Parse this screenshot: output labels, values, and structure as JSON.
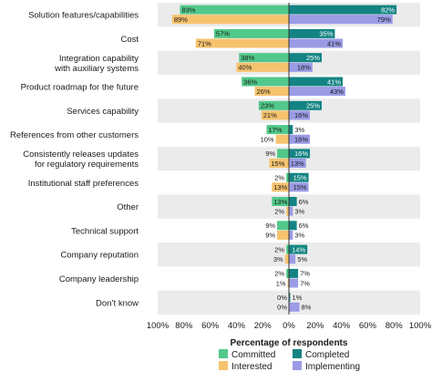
{
  "chart_data": {
    "type": "bar",
    "orientation": "horizontal-diverging",
    "xlabel": "Percentage of respondents",
    "xlim": [
      -100,
      100
    ],
    "x_ticks": [
      "100%",
      "80%",
      "60%",
      "40%",
      "20%",
      "0%",
      "20%",
      "40%",
      "60%",
      "80%",
      "100%"
    ],
    "grid": false,
    "legend_position": "bottom",
    "categories": [
      "Solution features/capabilities",
      "Cost",
      "Integration capability\nwith auxiliary systems",
      "Product roadmap for the future",
      "Services capability",
      "References from other customers",
      "Consistently releases updates\nfor regulatory requirements",
      "Institutional staff preferences",
      "Other",
      "Technical support",
      "Company reputation",
      "Company leadership",
      "Don’t know"
    ],
    "series": [
      {
        "name": "Committed",
        "side": "left",
        "row": "upper",
        "color": "#52c88a",
        "values": [
          83,
          57,
          38,
          36,
          23,
          17,
          9,
          2,
          13,
          9,
          2,
          2,
          0
        ],
        "labels": [
          "83%",
          "57%",
          "38%",
          "36%",
          "23%",
          "17%",
          "9%",
          "2%",
          "13%",
          "9%",
          "2%",
          "2%",
          "0%"
        ]
      },
      {
        "name": "Interested",
        "side": "left",
        "row": "lower",
        "color": "#f6c36e",
        "values": [
          89,
          71,
          40,
          26,
          21,
          10,
          15,
          13,
          2,
          9,
          3,
          1,
          0
        ],
        "labels": [
          "89%",
          "71%",
          "40%",
          "26%",
          "21%",
          "10%",
          "15%",
          "13%",
          "2%",
          "9%",
          "3%",
          "1%",
          "0%"
        ]
      },
      {
        "name": "Completed",
        "side": "right",
        "row": "upper",
        "color": "#138483",
        "values": [
          82,
          35,
          25,
          41,
          25,
          3,
          16,
          15,
          6,
          6,
          14,
          7,
          1
        ],
        "labels": [
          "82%",
          "35%",
          "25%",
          "41%",
          "25%",
          "3%",
          "16%",
          "15%",
          "6%",
          "6%",
          "14%",
          "7%",
          "1%"
        ]
      },
      {
        "name": "Implementing",
        "side": "right",
        "row": "lower",
        "color": "#9b9be6",
        "values": [
          79,
          41,
          18,
          43,
          16,
          16,
          13,
          15,
          3,
          3,
          5,
          7,
          8
        ],
        "labels": [
          "79%",
          "41%",
          "18%",
          "43%",
          "16%",
          "16%",
          "13%",
          "15%",
          "3%",
          "3%",
          "5%",
          "7%",
          "8%"
        ]
      }
    ],
    "legend": [
      {
        "label": "Committed",
        "color": "#52c88a"
      },
      {
        "label": "Completed",
        "color": "#138483"
      },
      {
        "label": "Interested",
        "color": "#f6c36e"
      },
      {
        "label": "Implementing",
        "color": "#9b9be6"
      }
    ]
  }
}
